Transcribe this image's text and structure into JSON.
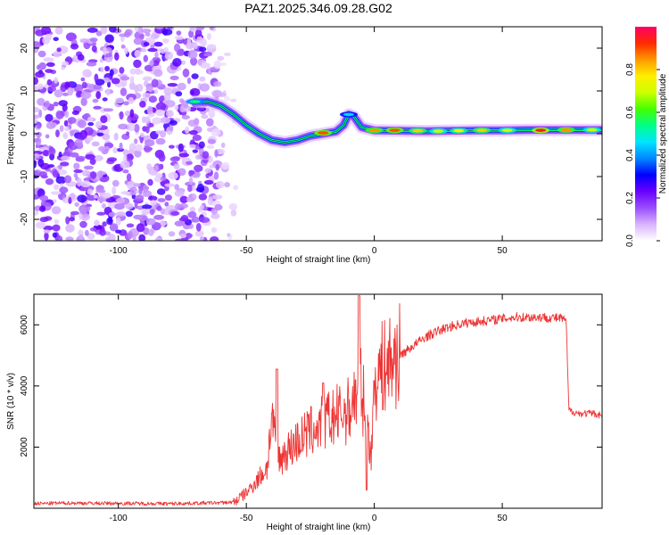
{
  "chart_data": [
    {
      "type": "heatmap",
      "title": "PAZ1.2025.346.09.28.G02",
      "xlabel": "Height of straight line (km)",
      "ylabel": "Frequency (Hz)",
      "xlim": [
        -133,
        89
      ],
      "ylim": [
        -25,
        25
      ],
      "xticks": [
        -100,
        -50,
        0,
        50
      ],
      "yticks": [
        -20,
        -10,
        0,
        10,
        20
      ],
      "colorbar": {
        "label": "Normalized spectral amplitude",
        "range": [
          0,
          1
        ],
        "ticks": [
          0.0,
          0.2,
          0.4,
          0.6,
          0.8
        ],
        "colors": [
          "#ffffff",
          "#d9b3ff",
          "#9a4dff",
          "#6a00ff",
          "#0000ff",
          "#0088ff",
          "#00e5ff",
          "#00ff88",
          "#44ff00",
          "#ccff00",
          "#ffee00",
          "#ff9900",
          "#ff2a00",
          "#ff0066"
        ]
      },
      "noise_region_x": [
        -133,
        -55
      ],
      "signal_track": {
        "x": [
          -70,
          -65,
          -60,
          -55,
          -50,
          -45,
          -40,
          -35,
          -30,
          -25,
          -20,
          -15,
          -12,
          -10,
          -8,
          -5,
          0,
          10,
          20,
          30,
          40,
          50,
          60,
          70,
          80,
          89
        ],
        "freq": [
          7.5,
          7.5,
          6.5,
          4.5,
          2.0,
          0.0,
          -1.5,
          -2.0,
          -1.5,
          -0.5,
          0.0,
          0.5,
          2.0,
          4.5,
          4.0,
          1.5,
          0.8,
          0.7,
          0.6,
          0.7,
          0.8,
          0.8,
          0.9,
          0.9,
          0.9,
          0.9
        ]
      },
      "peaks": [
        {
          "x": -70,
          "freq": 7.5,
          "amp": 0.55
        },
        {
          "x": -20,
          "freq": 0.2,
          "amp": 0.9
        },
        {
          "x": -10,
          "freq": 4.5,
          "amp": 0.45
        },
        {
          "x": 0,
          "freq": 0.8,
          "amp": 0.85
        },
        {
          "x": 8,
          "freq": 0.8,
          "amp": 0.9
        },
        {
          "x": 17,
          "freq": 0.7,
          "amp": 0.8
        },
        {
          "x": 25,
          "freq": 0.6,
          "amp": 0.7
        },
        {
          "x": 33,
          "freq": 0.7,
          "amp": 0.75
        },
        {
          "x": 42,
          "freq": 0.8,
          "amp": 0.8
        },
        {
          "x": 52,
          "freq": 0.8,
          "amp": 0.7
        },
        {
          "x": 65,
          "freq": 0.8,
          "amp": 0.95
        },
        {
          "x": 75,
          "freq": 0.9,
          "amp": 0.85
        },
        {
          "x": 85,
          "freq": 0.9,
          "amp": 0.7
        }
      ]
    },
    {
      "type": "line",
      "xlabel": "Height of straight line (km)",
      "ylabel": "SNR (10 * v/v)",
      "xlim": [
        -133,
        89
      ],
      "ylim": [
        0,
        7000
      ],
      "xticks": [
        -100,
        -50,
        0,
        50
      ],
      "yticks": [
        2000,
        4000,
        6000
      ],
      "color": "#ee3333",
      "series": [
        {
          "name": "SNR",
          "x": [
            -133,
            -120,
            -100,
            -80,
            -60,
            -55,
            -50,
            -45,
            -42,
            -40,
            -38,
            -35,
            -30,
            -25,
            -20,
            -15,
            -10,
            -8,
            -6,
            -5,
            -3,
            -1,
            0,
            5,
            10,
            15,
            20,
            25,
            30,
            35,
            40,
            45,
            50,
            55,
            60,
            65,
            70,
            74,
            75,
            76,
            78,
            80,
            85,
            89
          ],
          "values": [
            150,
            170,
            160,
            150,
            180,
            200,
            500,
            1000,
            1300,
            3000,
            1500,
            1800,
            2200,
            2500,
            2800,
            3000,
            3200,
            3600,
            3800,
            4000,
            2600,
            1800,
            4300,
            4700,
            5000,
            5300,
            5600,
            5800,
            5950,
            6050,
            6100,
            6150,
            6200,
            6250,
            6250,
            6250,
            6230,
            6200,
            6100,
            3200,
            3150,
            3100,
            3100,
            3050
          ],
          "spikes": [
            {
              "x": -38,
              "value": 4550
            },
            {
              "x": -20,
              "value": 4100
            },
            {
              "x": -6,
              "value": 6950
            },
            {
              "x": -3,
              "value": 600
            }
          ]
        }
      ]
    }
  ]
}
